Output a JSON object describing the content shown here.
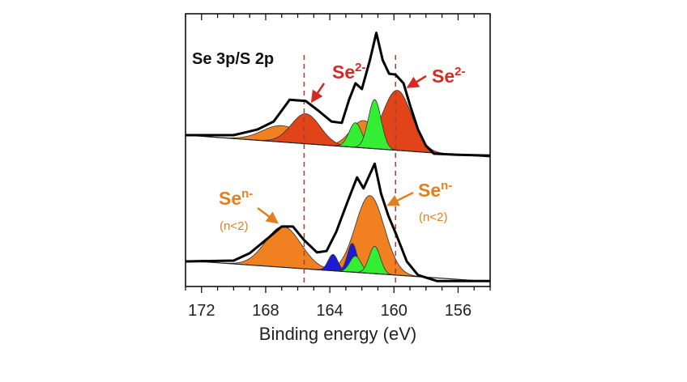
{
  "chart_data": {
    "type": "line",
    "title": "Se 3p/S 2p",
    "xlabel": "Binding energy (eV)",
    "ylabel": "",
    "xlim": [
      173,
      154
    ],
    "x_reversed": true,
    "ylim": [
      0,
      100
    ],
    "x_ticks": [
      172,
      168,
      164,
      160,
      156
    ],
    "x_tick_labels": [
      "172",
      "168",
      "164",
      "160",
      "156"
    ],
    "minor_tick_step": 1,
    "reference_lines_eV": [
      165.6,
      159.9
    ],
    "colors": {
      "orange": "#f08020",
      "red": "#e04418",
      "green": "#33ee33",
      "blue": "#1c1cd0",
      "data": "#000000",
      "ref_line": "#a0403a",
      "label_red": "#d42a22",
      "label_orange": "#e2801f"
    },
    "panels": [
      {
        "name": "top",
        "label": "Se 3p/S 2p",
        "baseline": [
          [
            173,
            55.5
          ],
          [
            154,
            47.5
          ]
        ],
        "measured": [
          [
            173,
            55.5
          ],
          [
            170,
            55.5
          ],
          [
            168.5,
            57.6
          ],
          [
            167.5,
            60.5
          ],
          [
            166.5,
            68.5
          ],
          [
            165.5,
            68
          ],
          [
            164.7,
            64.4
          ],
          [
            163.9,
            60.5
          ],
          [
            163.25,
            60
          ],
          [
            162.8,
            68.5
          ],
          [
            162.4,
            74.5
          ],
          [
            162.0,
            72.4
          ],
          [
            161.5,
            83
          ],
          [
            161.1,
            93
          ],
          [
            160.7,
            83
          ],
          [
            160.3,
            78
          ],
          [
            159.9,
            77.7
          ],
          [
            159.4,
            74.5
          ],
          [
            159.0,
            66.5
          ],
          [
            158.5,
            57.6
          ],
          [
            158.0,
            51.6
          ],
          [
            157.5,
            48.7
          ],
          [
            156,
            48.3
          ],
          [
            154,
            48
          ]
        ],
        "components": [
          {
            "color": "orange",
            "center": 167.0,
            "height": 6,
            "sigma": 1.2
          },
          {
            "color": "orange",
            "center": 161.9,
            "height": 10,
            "sigma": 0.8
          },
          {
            "color": "red",
            "center": 165.5,
            "height": 11,
            "sigma": 0.9
          },
          {
            "color": "red",
            "center": 159.8,
            "height": 22,
            "sigma": 0.9
          },
          {
            "color": "green",
            "center": 162.4,
            "height": 9,
            "sigma": 0.4
          },
          {
            "color": "green",
            "center": 161.2,
            "height": 18,
            "sigma": 0.4
          }
        ]
      },
      {
        "name": "bottom",
        "baseline": [
          [
            173,
            9.5
          ],
          [
            154,
            1.8
          ]
        ],
        "measured": [
          [
            173,
            9.2
          ],
          [
            170,
            9.5
          ],
          [
            169,
            12.2
          ],
          [
            168,
            17
          ],
          [
            167,
            22
          ],
          [
            166.3,
            22
          ],
          [
            165.6,
            17
          ],
          [
            164.8,
            12.5
          ],
          [
            164.2,
            13
          ],
          [
            163.6,
            20
          ],
          [
            162.9,
            31
          ],
          [
            162.3,
            40
          ],
          [
            161.9,
            36
          ],
          [
            161.2,
            45
          ],
          [
            160.8,
            34
          ],
          [
            160.35,
            26
          ],
          [
            159.85,
            19
          ],
          [
            159.2,
            9.2
          ],
          [
            158.5,
            4.2
          ],
          [
            157.3,
            2
          ],
          [
            154,
            2
          ]
        ],
        "components": [
          {
            "color": "orange",
            "center": 166.9,
            "height": 15,
            "sigma": 1.1
          },
          {
            "color": "orange",
            "center": 161.5,
            "height": 28.5,
            "sigma": 0.9
          },
          {
            "color": "blue",
            "center": 163.8,
            "height": 6,
            "sigma": 0.3
          },
          {
            "color": "blue",
            "center": 162.6,
            "height": 10.5,
            "sigma": 0.3
          },
          {
            "color": "green",
            "center": 162.4,
            "height": 6,
            "sigma": 0.35
          },
          {
            "color": "green",
            "center": 161.2,
            "height": 10,
            "sigma": 0.35
          }
        ]
      }
    ],
    "annotations": {
      "se2_left": {
        "base": "Se",
        "sup": "2-"
      },
      "se2_right": {
        "base": "Se",
        "sup": "2-"
      },
      "sen_left": {
        "base": "Se",
        "sup": "n-",
        "sub": "(n<2)"
      },
      "sen_right": {
        "base": "Se",
        "sup": "n-",
        "sub": "(n<2)"
      }
    }
  }
}
